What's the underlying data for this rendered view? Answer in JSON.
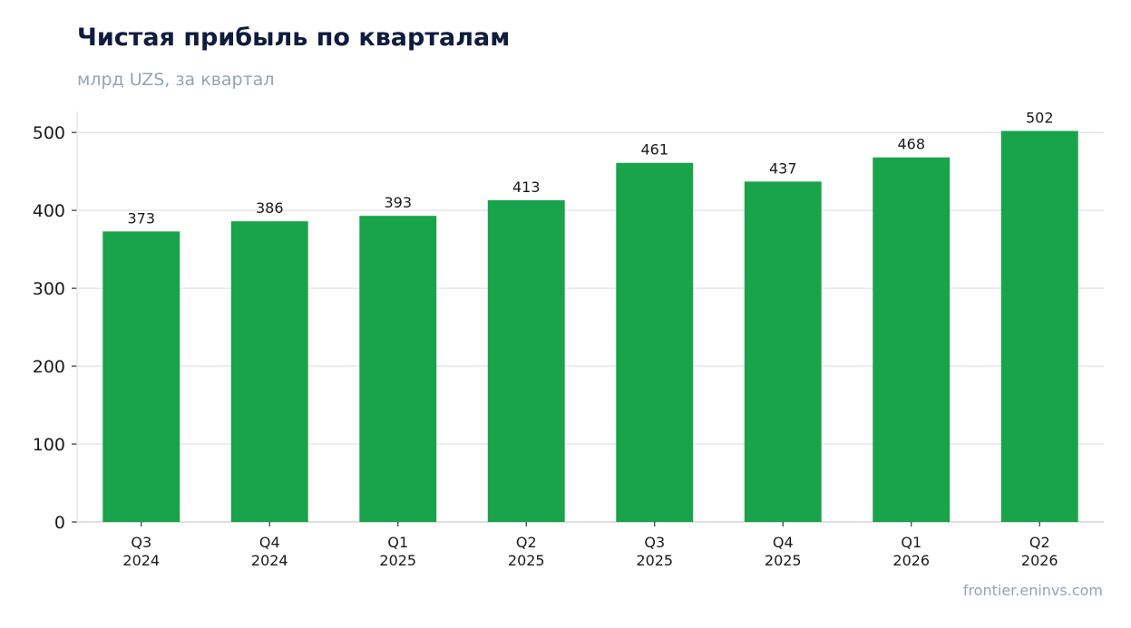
{
  "chart_data": {
    "type": "bar",
    "title": "Чистая прибыль по кварталам",
    "subtitle": "млрд UZS, за квартал",
    "categories": [
      [
        "Q3",
        "2024"
      ],
      [
        "Q4",
        "2024"
      ],
      [
        "Q1",
        "2025"
      ],
      [
        "Q2",
        "2025"
      ],
      [
        "Q3",
        "2025"
      ],
      [
        "Q4",
        "2025"
      ],
      [
        "Q1",
        "2026"
      ],
      [
        "Q2",
        "2026"
      ]
    ],
    "values": [
      373,
      386,
      393,
      413,
      461,
      437,
      468,
      502
    ],
    "ylim": [
      0,
      527
    ],
    "yticks": [
      0,
      100,
      200,
      300,
      400,
      500
    ],
    "grid": true,
    "bar_color": "#19a34a",
    "grid_color": "#e5e7eb"
  },
  "footer": {
    "source": "frontier.eninvs.com"
  }
}
